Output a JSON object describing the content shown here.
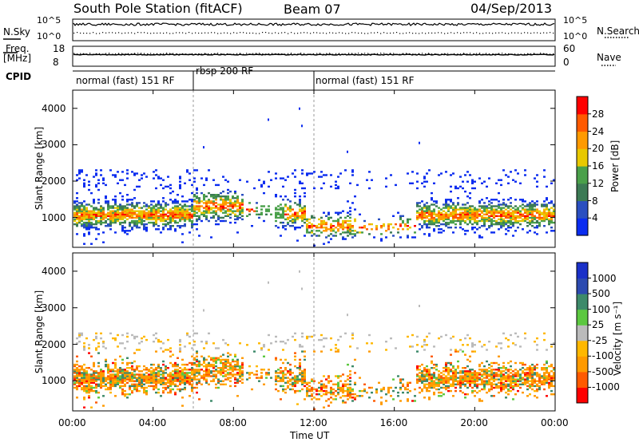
{
  "header": {
    "title": "South Pole Station (fitACF)",
    "beam": "Beam 07",
    "date": "04/Sep/2013"
  },
  "side_labels": {
    "nsky": "N.Sky",
    "freq": "Freq.",
    "freq_unit": "[MHz]",
    "cpid": "CPID",
    "nsearch": "N.Search",
    "nave": "Nave"
  },
  "small_axes": {
    "nsky_ticks": [
      "10^5",
      "10^0"
    ],
    "nsearch_ticks": [
      "10^5",
      "10^0"
    ],
    "freq_ticks": [
      "18",
      "8"
    ],
    "nave_ticks": [
      "60",
      "0"
    ]
  },
  "cpid_segments": [
    {
      "label": "normal (fast) 151 RF",
      "start_ut": 0,
      "end_ut": 6
    },
    {
      "label": "rbsp 200 RF",
      "start_ut": 6,
      "end_ut": 12
    },
    {
      "label": "normal (fast) 151 RF",
      "start_ut": 12,
      "end_ut": 24
    }
  ],
  "colors": {
    "power": [
      "#0a2cf0",
      "#2a4fc0",
      "#3c7a55",
      "#4aa04a",
      "#e8c800",
      "#ff9a00",
      "#ff5a00",
      "#ff0000"
    ],
    "velocity": [
      "#ff0000",
      "#ff5a00",
      "#ff9a00",
      "#ffb800",
      "#bbbbbb",
      "#5cc840",
      "#3d8a6a",
      "#2c4ab0",
      "#1a30c8"
    ]
  },
  "chart_data": [
    {
      "type": "heatmap",
      "title": "Power",
      "ylabel": "Slant Range [km]",
      "ylim": [
        180,
        4500
      ],
      "y_ticks": [
        "4000",
        "3000",
        "2000",
        "1000"
      ],
      "x_ticks": [
        "00:00",
        "04:00",
        "08:00",
        "12:00",
        "16:00",
        "20:00",
        "00:00"
      ],
      "colorbar_label": "Power [dB]",
      "colorbar_ticks": [
        "28",
        "24",
        "20",
        "16",
        "12",
        "8",
        "4"
      ],
      "xlim_hours": [
        0,
        24
      ]
    },
    {
      "type": "heatmap",
      "title": "Velocity",
      "ylabel": "Slant Range [km]",
      "ylim": [
        180,
        4500
      ],
      "y_ticks": [
        "4000",
        "3000",
        "2000",
        "1000"
      ],
      "x_ticks": [
        "00:00",
        "04:00",
        "08:00",
        "12:00",
        "16:00",
        "20:00",
        "00:00"
      ],
      "xlabel": "Time UT",
      "colorbar_label": "Velocity [m s⁻¹]",
      "colorbar_ticks": [
        "1000",
        "500",
        "100",
        "25",
        "-25",
        "-100",
        "-500",
        "-1000"
      ],
      "xlim_hours": [
        0,
        24
      ]
    }
  ]
}
